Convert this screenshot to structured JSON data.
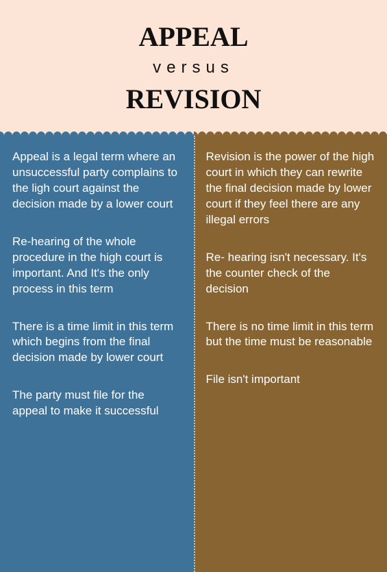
{
  "header": {
    "line1": "APPEAL",
    "line2": "versus",
    "line3": "REVISION",
    "background_color": "#fce5d6",
    "text_color": "#111111",
    "line1_fontsize": 40,
    "line2_fontsize": 24,
    "line3_fontsize": 40
  },
  "columns": {
    "left": {
      "background_color": "#3e7299",
      "text_color": "#ffffff",
      "fontsize": 17,
      "items": [
        "Appeal is a legal term where an unsuccessful party complains to the ligh court against the decision made by a lower court",
        "Re-hearing of the whole procedure in the high court is important. And It's the only process in this term",
        "There is a time limit in this term which begins from the final decision made by lower court",
        "The party must file for the appeal to make it successful"
      ]
    },
    "right": {
      "background_color": "#876432",
      "text_color": "#ffffff",
      "fontsize": 17,
      "items": [
        "Revision is the power of the high court in which they can rewrite the final decision made by lower court if they feel there are any illegal errors",
        "Re- hearing isn't necessary. It's the counter check of the decision",
        "There is no time limit in this term but the time must be reasonable",
        "File isn't important"
      ]
    },
    "divider_color": "rgba(255,255,255,0.6)"
  }
}
